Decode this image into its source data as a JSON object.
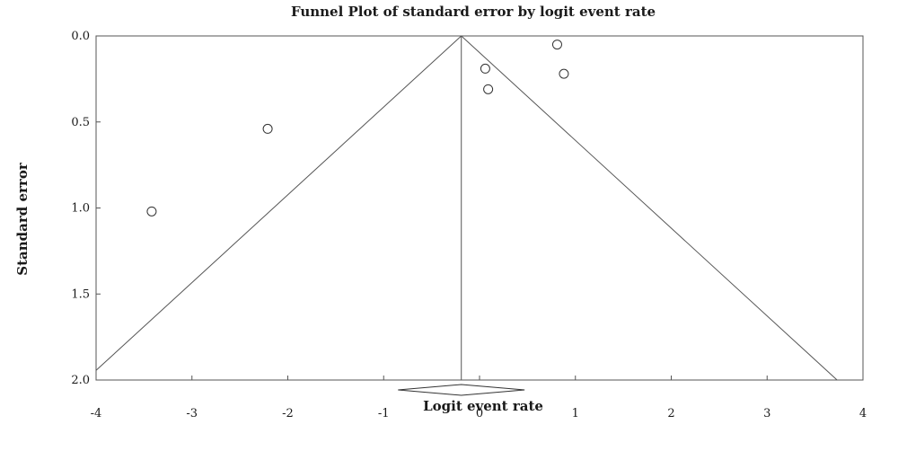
{
  "chart_data": {
    "type": "scatter",
    "title": "Funnel Plot of standard error by logit event rate",
    "xlabel": "Logit event rate",
    "ylabel": "Standard error",
    "xlim": [
      -4,
      4
    ],
    "ylim": [
      0,
      2
    ],
    "y_inverted": true,
    "x_ticks": [
      "-4",
      "-3",
      "-2",
      "-1",
      "0",
      "1",
      "2",
      "3",
      "4"
    ],
    "y_ticks": [
      "0.0",
      "0.5",
      "1.0",
      "1.5",
      "2.0"
    ],
    "grid": false,
    "points": [
      {
        "x": 0.81,
        "y": 0.05
      },
      {
        "x": 0.06,
        "y": 0.19
      },
      {
        "x": 0.88,
        "y": 0.22
      },
      {
        "x": 0.09,
        "y": 0.31
      },
      {
        "x": -2.21,
        "y": 0.54
      },
      {
        "x": -3.42,
        "y": 1.02
      }
    ],
    "summary": {
      "x": -0.19,
      "ci": [
        -0.85,
        0.47
      ]
    },
    "funnel": {
      "apex_x": -0.19,
      "slope_per_se": 1.96
    }
  }
}
